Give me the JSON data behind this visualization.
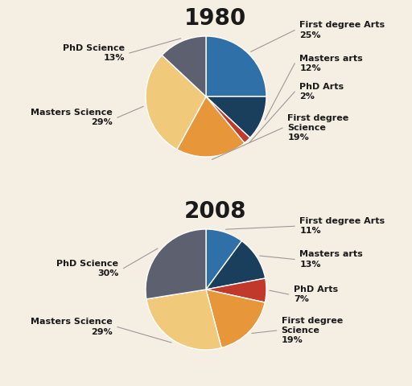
{
  "background_color": "#f5efe3",
  "chart1": {
    "title": "1980",
    "title_fontsize": 20,
    "slices": [
      25,
      12,
      2,
      19,
      29,
      13
    ],
    "colors": [
      "#3070a8",
      "#1a3f5c",
      "#c0392b",
      "#e8963a",
      "#f0c97a",
      "#5d606e"
    ],
    "labels": [
      "First degree Arts\n25%",
      "Masters arts\n12%",
      "PhD Arts\n2%",
      "First degree\nScience\n19%",
      "Masters Science\n29%",
      "PhD Science\n13%"
    ],
    "startangle": 90
  },
  "chart2": {
    "title": "2008",
    "title_fontsize": 20,
    "slices": [
      11,
      13,
      7,
      19,
      29,
      30
    ],
    "colors": [
      "#3070a8",
      "#1a3f5c",
      "#c0392b",
      "#e8963a",
      "#f0c97a",
      "#5d606e"
    ],
    "labels": [
      "First degree Arts\n11%",
      "Masters arts\n13%",
      "PhD Arts\n7%",
      "First degree\nScience\n19%",
      "Masters Science\n29%",
      "PhD Science\n30%"
    ],
    "startangle": 90
  },
  "label_fontsize": 8,
  "label_color": "#1a1a1a",
  "line_color": "#999999"
}
